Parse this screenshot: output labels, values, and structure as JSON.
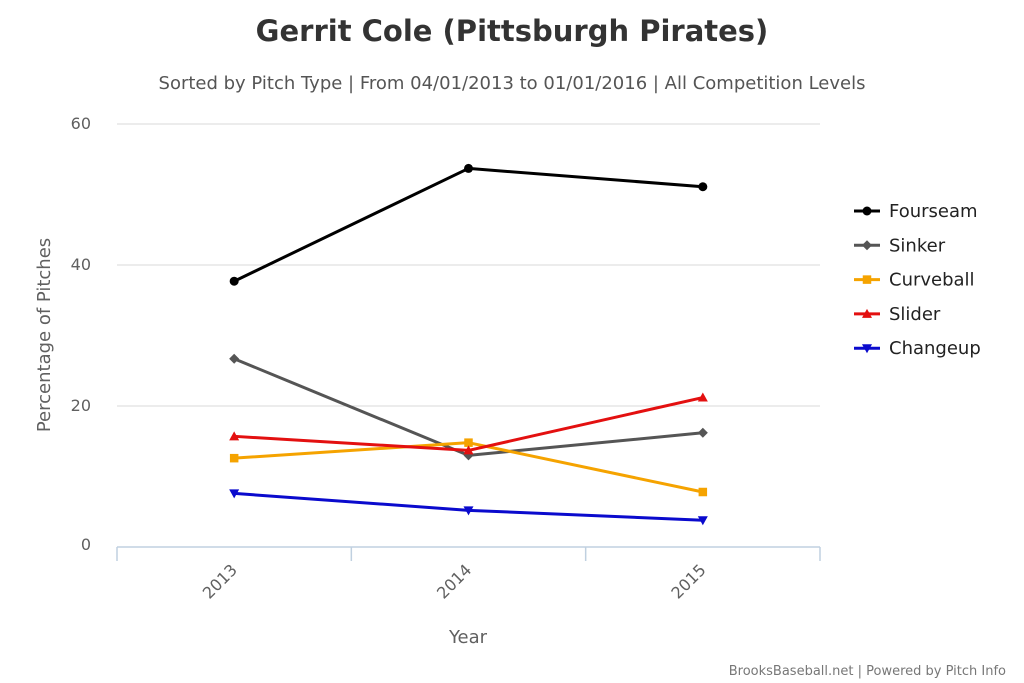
{
  "chart_data": {
    "type": "line",
    "title": "Gerrit Cole (Pittsburgh Pirates)",
    "subtitle": "Sorted by Pitch Type | From 04/01/2013 to 01/01/2016 | All Competition Levels",
    "xlabel": "Year",
    "ylabel": "Percentage of Pitches",
    "categories": [
      "2013",
      "2014",
      "2015"
    ],
    "ylim": [
      0,
      60
    ],
    "yticks": [
      0,
      20,
      40,
      60
    ],
    "grid": true,
    "legend_position": "right",
    "series": [
      {
        "name": "Fourseam",
        "color": "#000000",
        "marker": "circle",
        "values": [
          37.7,
          53.7,
          51.1
        ]
      },
      {
        "name": "Sinker",
        "color": "#555555",
        "marker": "diamond",
        "values": [
          26.7,
          13.0,
          16.2
        ]
      },
      {
        "name": "Curveball",
        "color": "#f5a300",
        "marker": "square",
        "values": [
          12.6,
          14.8,
          7.8
        ]
      },
      {
        "name": "Slider",
        "color": "#e31010",
        "marker": "triangle",
        "values": [
          15.7,
          13.7,
          21.2
        ]
      },
      {
        "name": "Changeup",
        "color": "#0a0acd",
        "marker": "triangle-down",
        "values": [
          7.6,
          5.2,
          3.8
        ]
      }
    ]
  },
  "credits": "BrooksBaseball.net | Powered by Pitch Info"
}
